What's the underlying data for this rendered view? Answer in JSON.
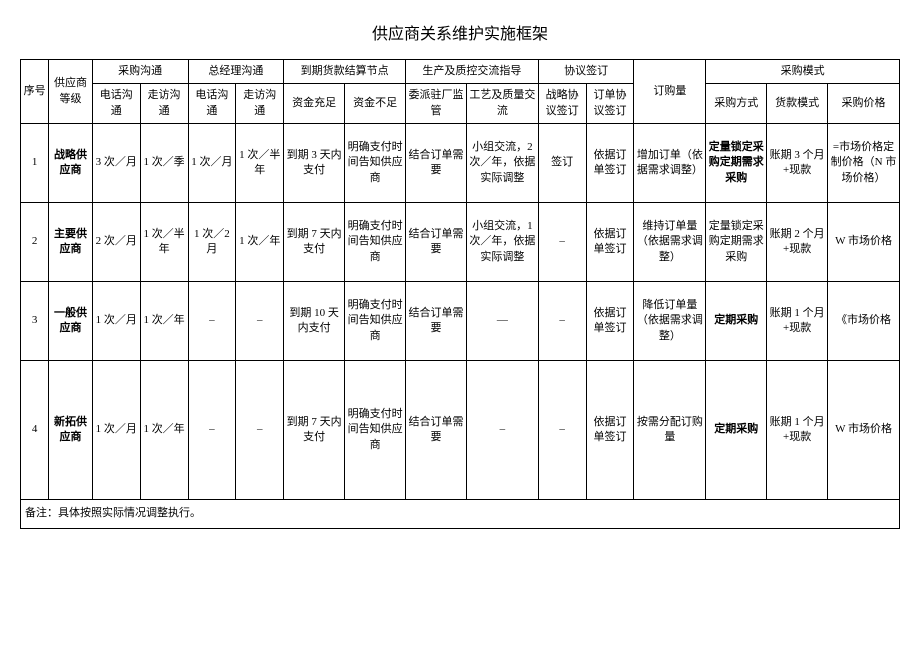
{
  "title": "供应商关系维护实施框架",
  "headers": {
    "seq": "序号",
    "grade": "供应商等级",
    "purchase_comm": "采购沟通",
    "gm_comm": "总经理沟通",
    "settlement": "到期货款结算节点",
    "prod_quality": "生产及质控交流指导",
    "agreement": "协议签订",
    "order_qty": "订购量",
    "purchase_mode": "采购模式",
    "phone": "电话沟通",
    "visit": "走访沟通",
    "fund_enough": "资金充足",
    "fund_short": "资金不足",
    "delegate": "委派驻厂监管",
    "craft": "工艺及质量交流",
    "strategic_sign": "战略协议签订",
    "order_sign": "订单协议签订",
    "method": "采购方式",
    "payment": "货款模式",
    "price": "采购价格"
  },
  "rows": [
    {
      "seq": "1",
      "grade": "战略供应商",
      "grade_bold": true,
      "p_phone": "3 次／月",
      "p_visit": "1 次／季",
      "g_phone": "1 次／月",
      "g_visit": "1 次／半年",
      "fund_enough": "到期 3 天内支付",
      "fund_short": "明确支付时间告知供应商",
      "delegate": "结合订单需要",
      "craft": "小组交流，2 次／年，依据实际调整",
      "strategic": "签订",
      "order_sign": "依据订单签订",
      "order_qty": "增加订单（依据需求调整）",
      "method": "定量锁定采购定期需求采购",
      "method_bold": true,
      "payment": "账期 3 个月+现款",
      "price": "=市场价格定制价格（N 市场价格）",
      "tall": false
    },
    {
      "seq": "2",
      "grade": "主要供应商",
      "grade_bold": true,
      "p_phone": "2 次／月",
      "p_visit": "1 次／半年",
      "g_phone": "1 次／2月",
      "g_visit": "1 次／年",
      "fund_enough": "到期 7 天内支付",
      "fund_short": "明确支付时间告知供应商",
      "delegate": "结合订单需要",
      "craft": "小组交流，1 次／年，依据实际调整",
      "strategic": "–",
      "order_sign": "依据订单签订",
      "order_qty": "维持订单量（依据需求调整）",
      "method": "定量锁定采购定期需求采购",
      "method_bold": false,
      "payment": "账期 2 个月+现款",
      "price": "W 市场价格",
      "tall": false
    },
    {
      "seq": "3",
      "grade": "一般供应商",
      "grade_bold": true,
      "p_phone": "1 次／月",
      "p_visit": "1 次／年",
      "g_phone": "–",
      "g_visit": "–",
      "fund_enough": "到期 10 天内支付",
      "fund_short": "明确支付时间告知供应商",
      "delegate": "结合订单需要",
      "craft": "—",
      "strategic": "–",
      "order_sign": "依据订单签订",
      "order_qty": "降低订单量（依据需求调整）",
      "method": "定期采购",
      "method_bold": true,
      "payment": "账期 1 个月+现款",
      "price": "《市场价格",
      "tall": false
    },
    {
      "seq": "4",
      "grade": "新拓供应商",
      "grade_bold": true,
      "p_phone": "1 次／月",
      "p_visit": "1 次／年",
      "g_phone": "–",
      "g_visit": "–",
      "fund_enough": "到期 7 天内支付",
      "fund_short": "明确支付时间告知供应商",
      "delegate": "结合订单需要",
      "craft": "–",
      "strategic": "–",
      "order_sign": "依据订单签订",
      "order_qty": "按需分配订购量",
      "method": "定期采购",
      "method_bold": true,
      "payment": "账期 1 个月+现款",
      "price": "W 市场价格",
      "tall": true
    }
  ],
  "footnote": "备注：具体按照实际情况调整执行。"
}
